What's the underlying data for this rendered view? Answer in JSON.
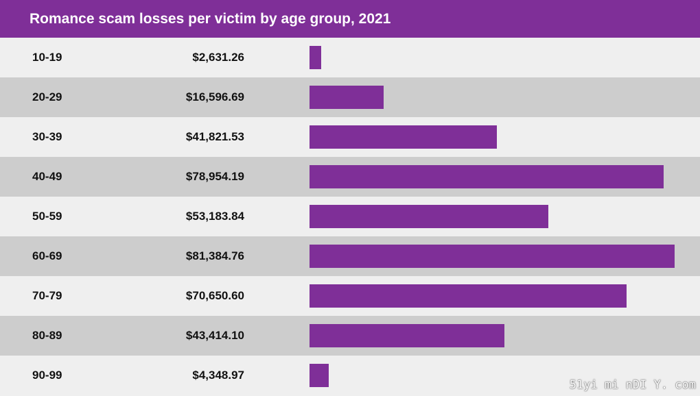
{
  "colors": {
    "accent": "#7f2f98",
    "row_light": "#efefef",
    "row_dark": "#cdcdcd"
  },
  "chart_data": {
    "type": "bar",
    "orientation": "horizontal",
    "title": "Romance scam losses per victim by age group, 2021",
    "categories": [
      "10-19",
      "20-29",
      "30-39",
      "40-49",
      "50-59",
      "60-69",
      "70-79",
      "80-89",
      "90-99"
    ],
    "values": [
      2631.26,
      16596.69,
      41821.53,
      78954.19,
      53183.84,
      81384.76,
      70650.6,
      43414.1,
      4348.97
    ],
    "value_labels": [
      "$2,631.26",
      "$16,596.69",
      "$41,821.53",
      "$78,954.19",
      "$53,183.84",
      "$81,384.76",
      "$70,650.60",
      "$43,414.10",
      "$4,348.97"
    ],
    "grid": false,
    "legend": "none"
  },
  "watermark": "51yi mi nDI Y. com"
}
